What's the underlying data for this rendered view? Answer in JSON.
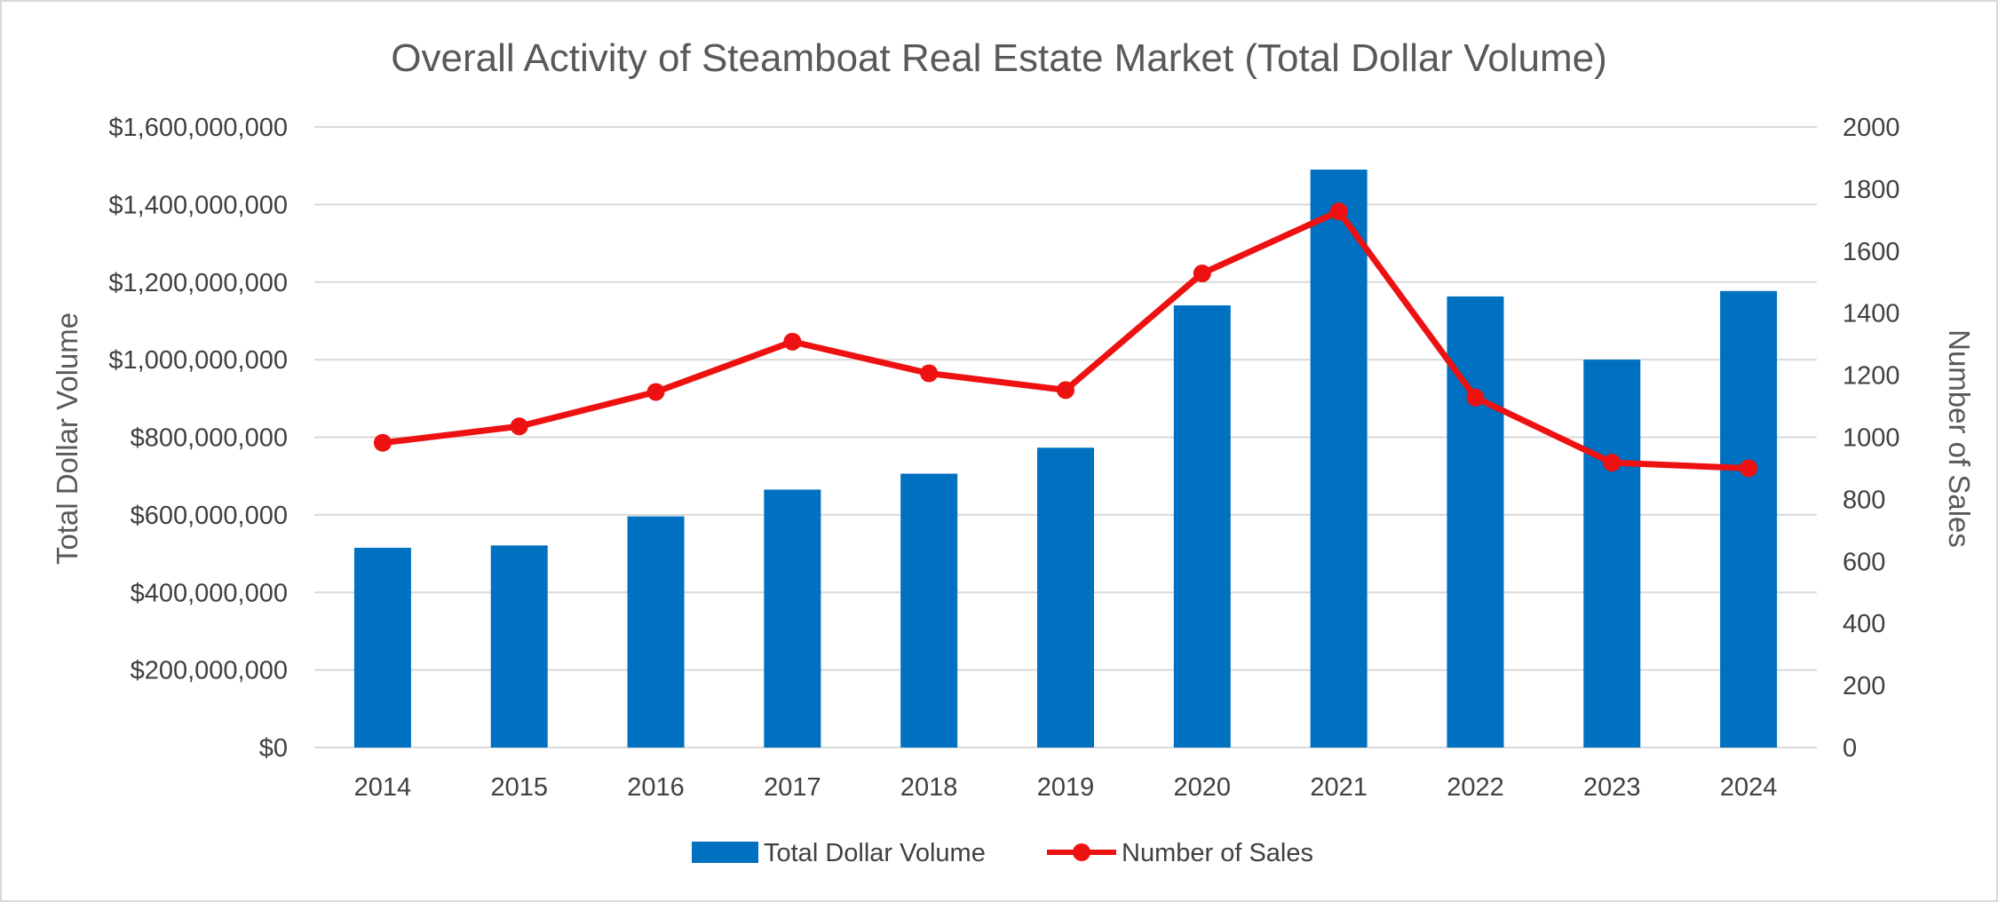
{
  "chart_data": {
    "type": "bar",
    "title": "Overall Activity of Steamboat Real Estate Market (Total Dollar Volume)",
    "categories": [
      "2014",
      "2015",
      "2016",
      "2017",
      "2018",
      "2019",
      "2020",
      "2021",
      "2022",
      "2023",
      "2024"
    ],
    "series": [
      {
        "name": "Total Dollar Volume",
        "type": "bar",
        "axis": "left",
        "color": "#0070C0",
        "values": [
          515000000,
          521000000,
          596000000,
          665000000,
          706000000,
          773000000,
          1140000000,
          1490000000,
          1163000000,
          1000000000,
          1177000000
        ]
      },
      {
        "name": "Number of Sales",
        "type": "line",
        "axis": "right",
        "color": "#EE1111",
        "values": [
          982,
          1035,
          1146,
          1308,
          1206,
          1152,
          1528,
          1728,
          1128,
          918,
          900
        ]
      }
    ],
    "ylabel": "Total Dollar Volume",
    "y2label": "Number of Sales",
    "xlabel": "",
    "ylim": [
      0,
      1600000000
    ],
    "y2lim": [
      0,
      2000
    ],
    "yticks": [
      0,
      200000000,
      400000000,
      600000000,
      800000000,
      1000000000,
      1200000000,
      1400000000,
      1600000000
    ],
    "ytick_labels": [
      "$0",
      "$200,000,000",
      "$400,000,000",
      "$600,000,000",
      "$800,000,000",
      "$1,000,000,000",
      "$1,200,000,000",
      "$1,400,000,000",
      "$1,600,000,000"
    ],
    "y2ticks": [
      0,
      200,
      400,
      600,
      800,
      1000,
      1200,
      1400,
      1600,
      1800,
      2000
    ],
    "y2tick_labels": [
      "0",
      "200",
      "400",
      "600",
      "800",
      "1000",
      "1200",
      "1400",
      "1600",
      "1800",
      "2000"
    ],
    "grid": true,
    "legend_position": "bottom"
  }
}
